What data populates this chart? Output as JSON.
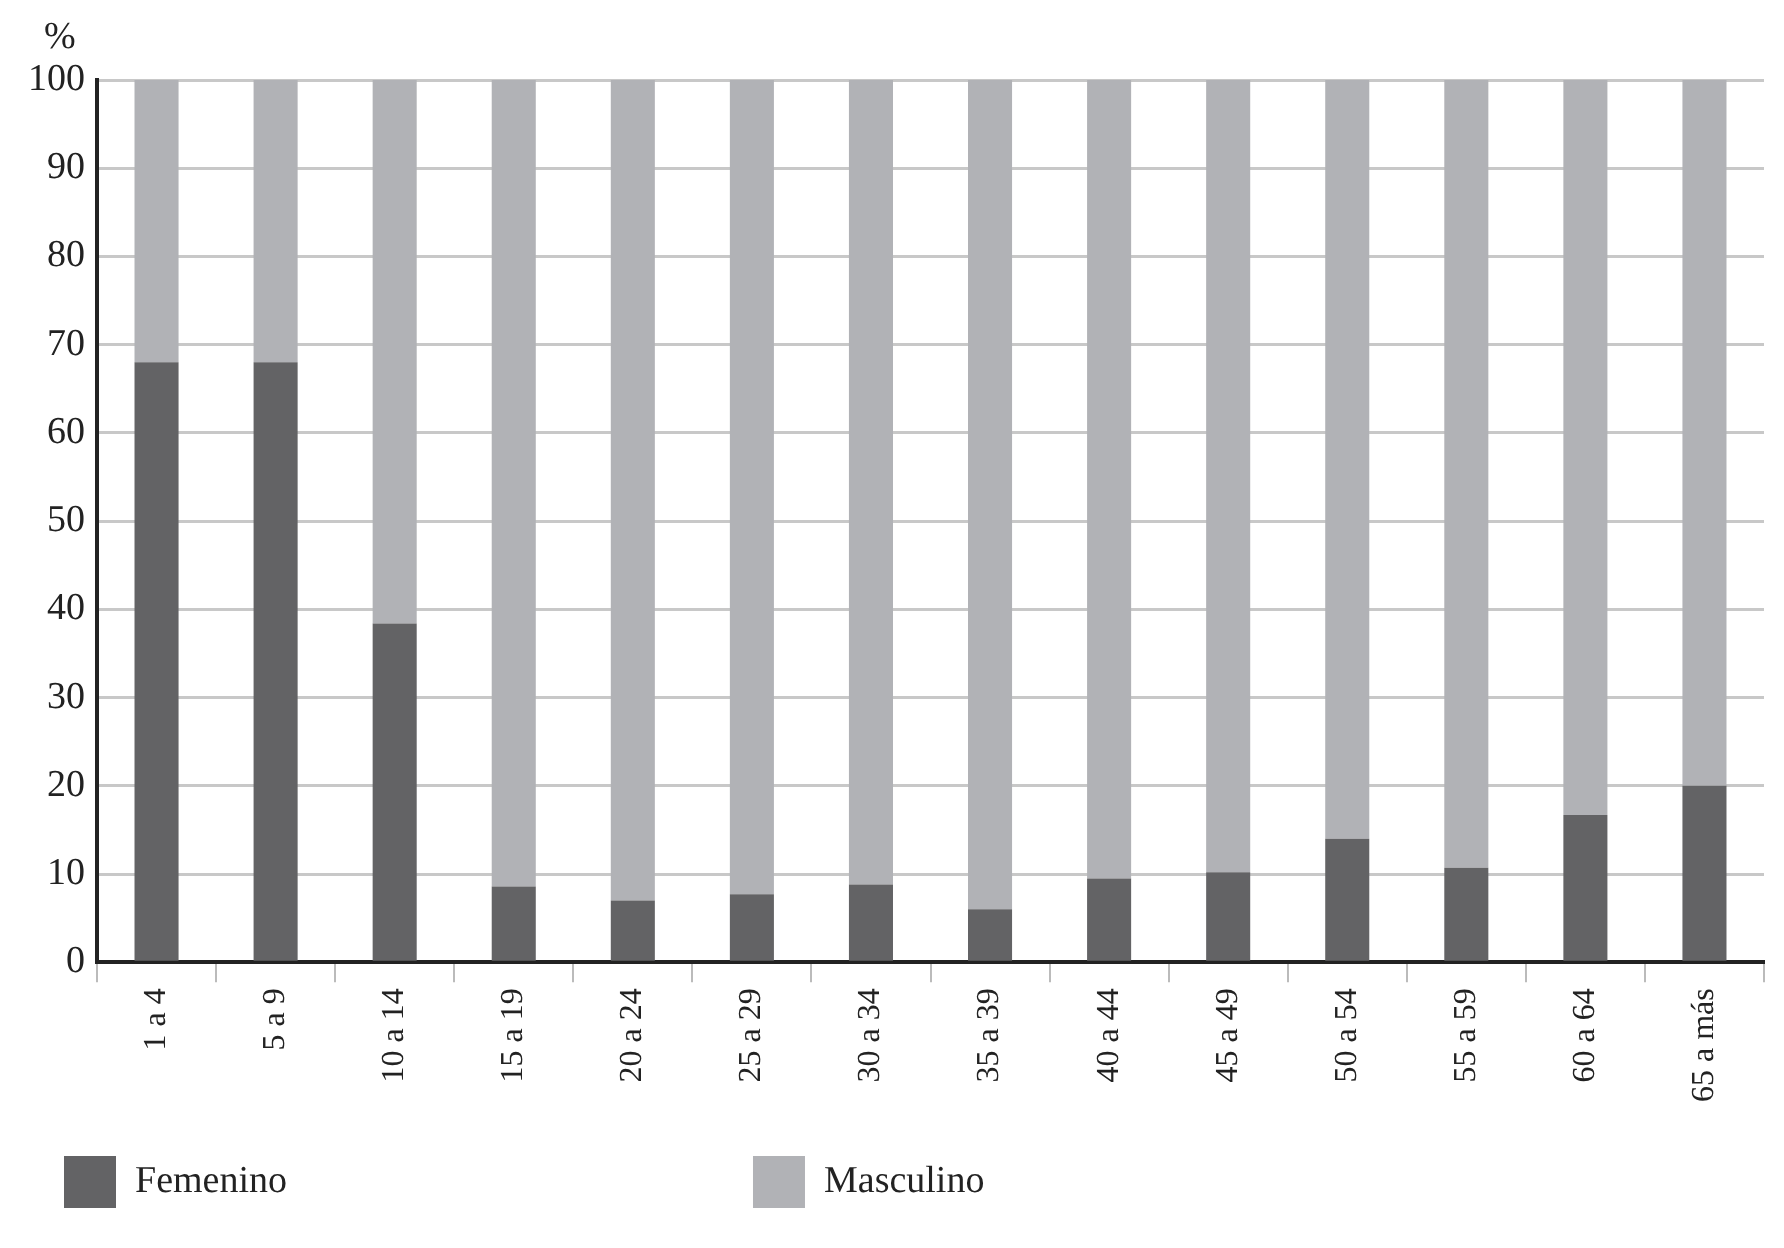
{
  "chart_data": {
    "type": "bar",
    "ylabel": "%",
    "stacked": true,
    "categories": [
      "1 a 4",
      "5 a 9",
      "10 a 14",
      "15 a 19",
      "20 a 24",
      "25 a 29",
      "30 a 34",
      "35 a 39",
      "40 a 44",
      "45 a 49",
      "50 a 54",
      "55 a 59",
      "60 a 64",
      "65 a más"
    ],
    "series": [
      {
        "name": "Femenino",
        "color": "#636365",
        "values": [
          68,
          68,
          38.4,
          8.6,
          7,
          7.7,
          8.8,
          6,
          9.5,
          10.2,
          14,
          10.7,
          16.7,
          20
        ]
      },
      {
        "name": "Masculino",
        "color": "#b1b2b6",
        "values": [
          32,
          32,
          61.6,
          91.4,
          93,
          92.3,
          91.2,
          94,
          90.5,
          89.8,
          86,
          89.3,
          83.3,
          80
        ]
      }
    ],
    "ylim": [
      0,
      100
    ],
    "yticks": [
      0,
      10,
      20,
      30,
      40,
      50,
      60,
      70,
      80,
      90,
      100
    ],
    "grid": "y",
    "legend": "bottom"
  }
}
